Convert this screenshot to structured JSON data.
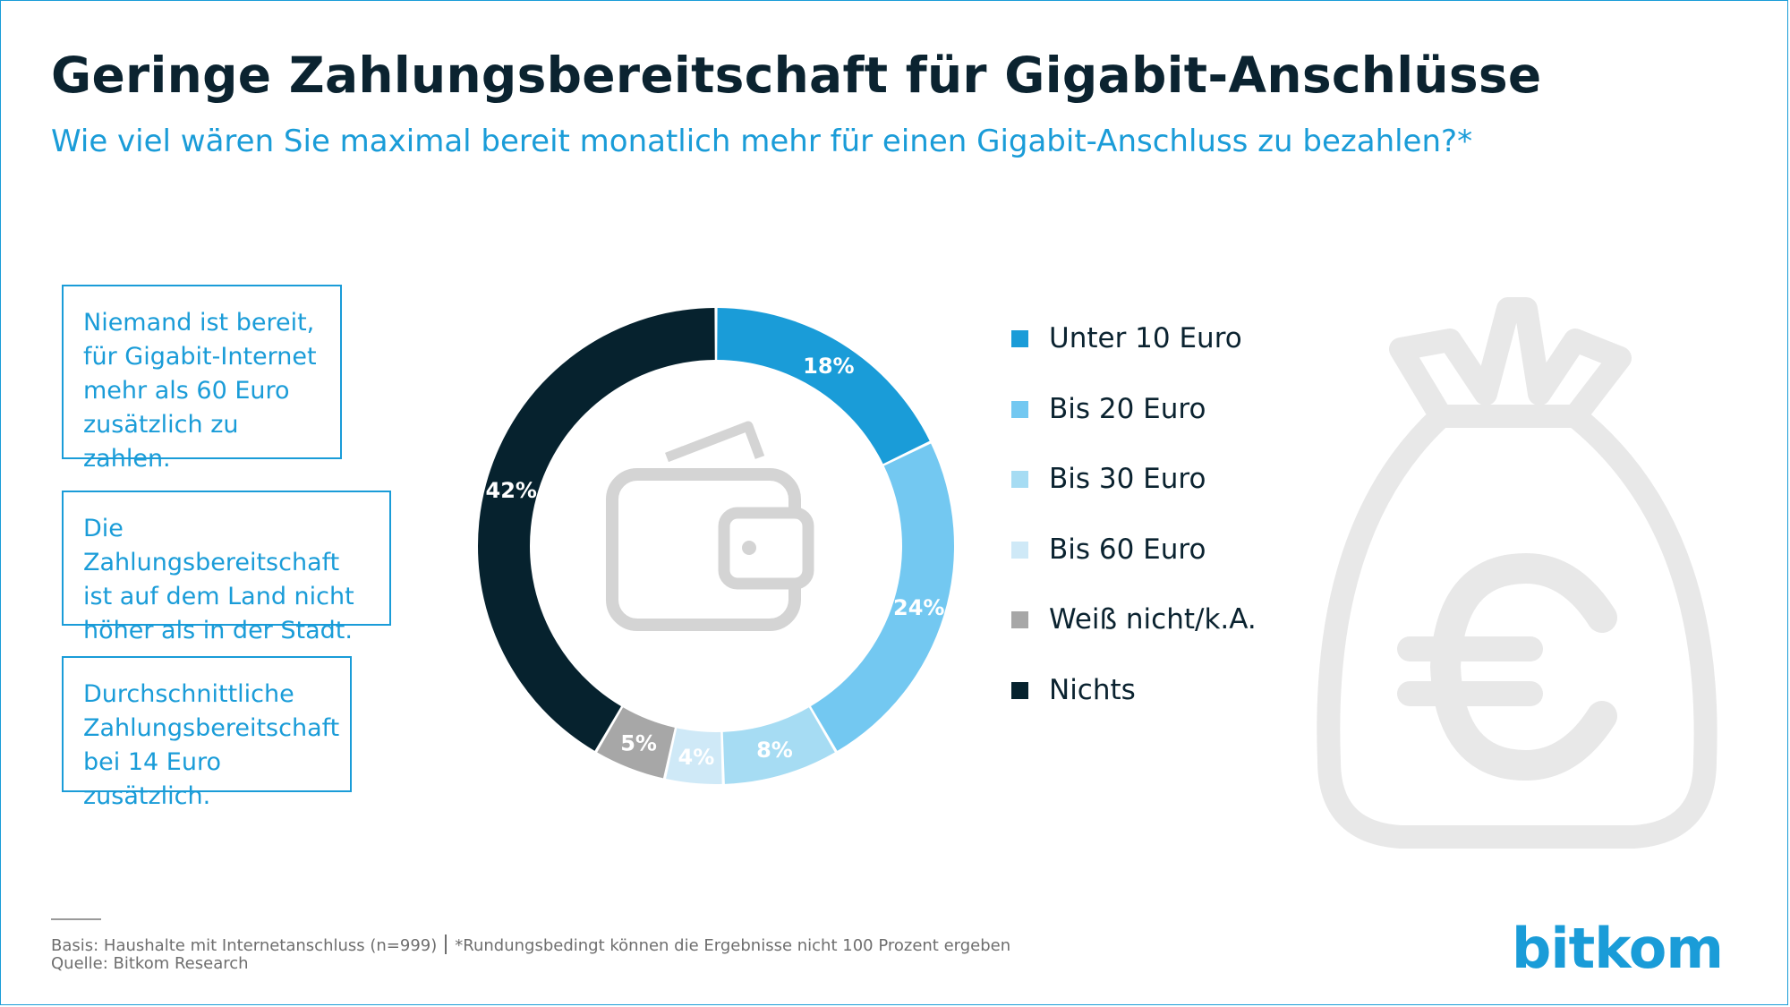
{
  "header": {
    "title": "Geringe Zahlungsbereitschaft für Gigabit-Anschlüsse",
    "subtitle": "Wie viel wären Sie maximal bereit monatlich mehr für einen Gigabit-Anschluss zu bezahlen?*"
  },
  "callouts": [
    {
      "text": "Niemand ist bereit,\nfür Gigabit-Internet\nmehr als 60 Euro\nzusätzlich zu zahlen."
    },
    {
      "text": "Die Zahlungsbereitschaft\nist auf dem Land nicht\nhöher als in der Stadt."
    },
    {
      "text": "Durchschnittliche\nZahlungsbereitschaft\nbei 14 Euro zusätzlich."
    }
  ],
  "chart_data": {
    "type": "pie",
    "variant": "donut",
    "categories": [
      "Unter 10 Euro",
      "Bis 20 Euro",
      "Bis 30 Euro",
      "Bis 60 Euro",
      "Weiß nicht/k.A.",
      "Nichts"
    ],
    "values": [
      18,
      24,
      8,
      4,
      5,
      42
    ],
    "labels": [
      "18%",
      "24%",
      "8%",
      "4%",
      "5%",
      "42%"
    ],
    "unit": "%",
    "colors": [
      "#1a9cd8",
      "#73c8f1",
      "#a6dcf3",
      "#cfe9f7",
      "#a7a7a7",
      "#06222e"
    ],
    "legend_position": "right"
  },
  "icons": {
    "center": "wallet-icon",
    "background": "money-bag-euro-icon"
  },
  "footer": {
    "basis": "Basis: Haushalte mit Internetanschluss (n=999)",
    "note": "*Rundungsbedingt können die Ergebnisse nicht 100 Prozent ergeben",
    "source": "Quelle: Bitkom Research",
    "logo": "bitkom"
  },
  "colors": {
    "accent": "#1a9cd8",
    "dark": "#0b2330",
    "icon_gray": "#d4d4d4"
  }
}
